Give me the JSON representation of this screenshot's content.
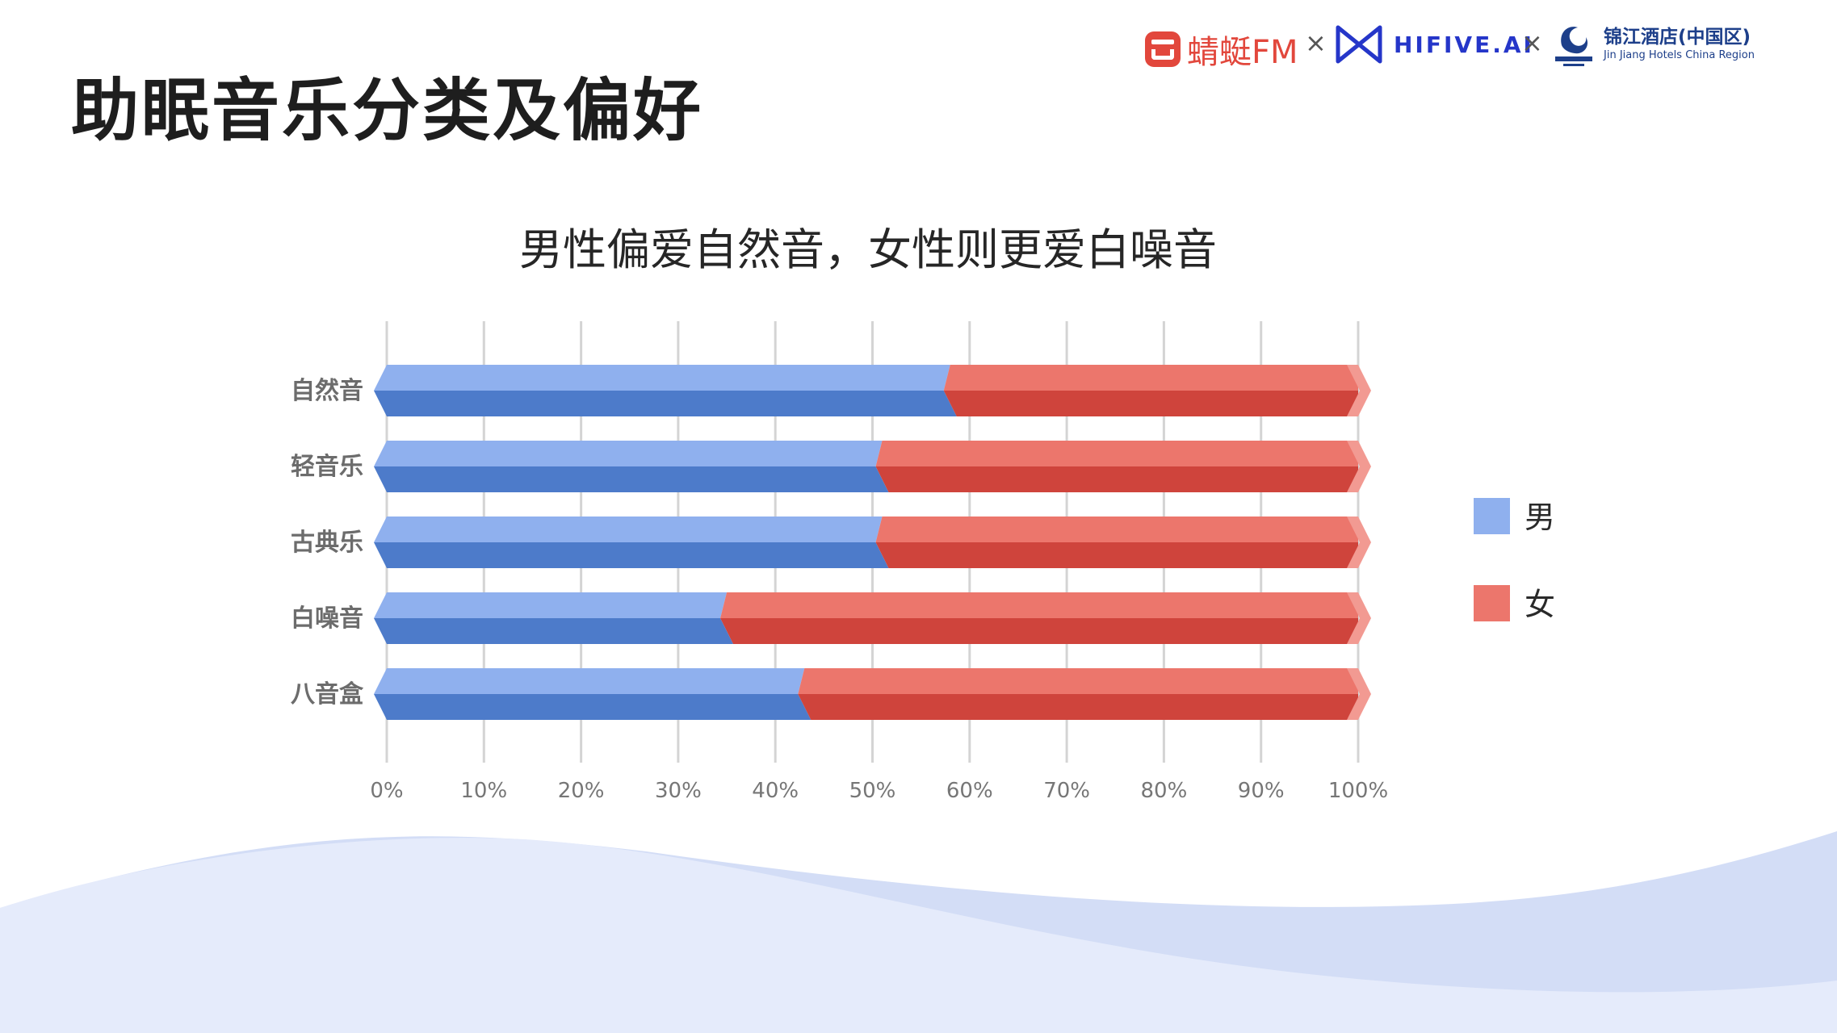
{
  "page": {
    "title": "助眠音乐分类及偏好"
  },
  "logos": {
    "fm_text": "蜻蜓FM",
    "times_symbol": "×",
    "hifive_text": "HIFIVE.AI",
    "jinjiang_cn": "锦江酒店(中国区)",
    "jinjiang_en": "Jin Jiang Hotels China Region"
  },
  "colors": {
    "male_light": "#8fb0ee",
    "male_dark": "#4d7bca",
    "female_light": "#ec766c",
    "female_dark": "#cf443c",
    "grid": "#d4d4d4",
    "axis_text": "#767676",
    "wave_light": "#e5ebfb",
    "wave_mid": "#d3ddf6"
  },
  "chart_data": {
    "type": "bar",
    "orientation": "horizontal",
    "stacked": "percent",
    "title": "男性偏爱自然音，女性则更爱白噪音",
    "categories": [
      "自然音",
      "轻音乐",
      "古典乐",
      "白噪音",
      "八音盒"
    ],
    "series": [
      {
        "name": "男",
        "values": [
          58,
          51,
          51,
          35,
          43
        ],
        "color": "#8fb0ee"
      },
      {
        "name": "女",
        "values": [
          42,
          49,
          49,
          65,
          57
        ],
        "color": "#ec766c"
      }
    ],
    "x_ticks": [
      "0%",
      "10%",
      "20%",
      "30%",
      "40%",
      "50%",
      "60%",
      "70%",
      "80%",
      "90%",
      "100%"
    ],
    "xlim": [
      0,
      100
    ],
    "grid": true,
    "legend": "right"
  }
}
